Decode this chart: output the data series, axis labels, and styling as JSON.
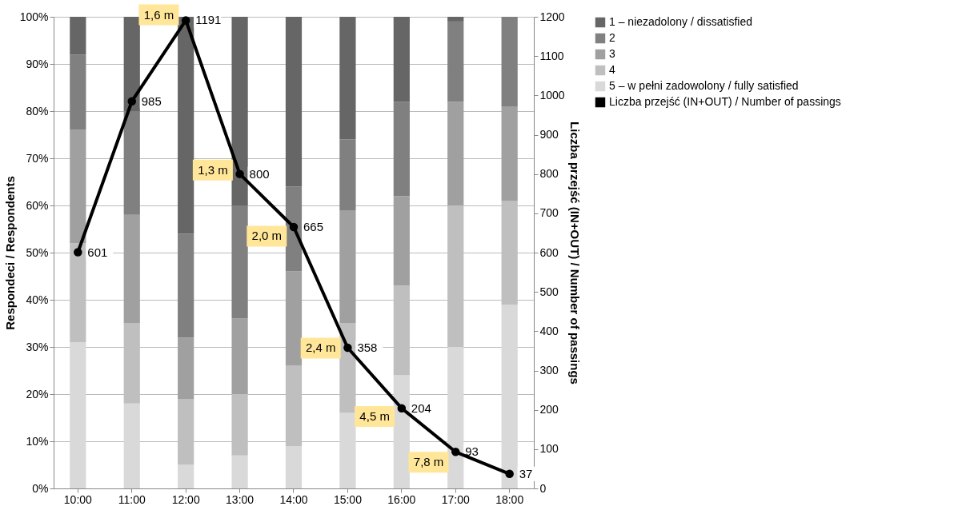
{
  "chart_data": {
    "type": "bar",
    "stacked": true,
    "ylabel": "Respondeci / Respondents",
    "y2label": "Liczba przejść (IN+OUT) / Number of passings",
    "categories": [
      "10:00",
      "11:00",
      "12:00",
      "13:00",
      "14:00",
      "15:00",
      "16:00",
      "17:00",
      "18:00"
    ],
    "ylim": [
      0,
      100
    ],
    "yticks": [
      {
        "value": 0,
        "label": "0%"
      },
      {
        "value": 10,
        "label": "10%"
      },
      {
        "value": 20,
        "label": "20%"
      },
      {
        "value": 30,
        "label": "30%"
      },
      {
        "value": 40,
        "label": "40%"
      },
      {
        "value": 50,
        "label": "50%"
      },
      {
        "value": 60,
        "label": "60%"
      },
      {
        "value": 70,
        "label": "70%"
      },
      {
        "value": 80,
        "label": "80%"
      },
      {
        "value": 90,
        "label": "90%"
      },
      {
        "value": 100,
        "label": "100%"
      }
    ],
    "y2lim": [
      0,
      1200
    ],
    "y2ticks": [
      0,
      100,
      200,
      300,
      400,
      500,
      600,
      700,
      800,
      900,
      1000,
      1100,
      1200
    ],
    "grid": "y",
    "legend": "right",
    "series": [
      {
        "name": "5 – w pełni zadowolony / fully satisfied",
        "color": "#d9d9d9",
        "values": [
          31,
          18,
          5,
          7,
          9,
          16,
          24,
          30,
          39
        ]
      },
      {
        "name": "4",
        "color": "#bfbfbf",
        "values": [
          21,
          17,
          14,
          13,
          17,
          19,
          19,
          30,
          22
        ]
      },
      {
        "name": "3",
        "color": "#a0a0a0",
        "values": [
          24,
          23,
          13,
          16,
          20,
          24,
          19,
          22,
          20
        ]
      },
      {
        "name": "2",
        "color": "#808080",
        "values": [
          16,
          22,
          22,
          24,
          18,
          15,
          20,
          17,
          19
        ]
      },
      {
        "name": "1 – niezadolony / dissatisfied",
        "color": "#666666",
        "values": [
          8,
          20,
          46,
          40,
          36,
          26,
          18,
          1,
          0
        ]
      },
      {
        "name": "Liczba przejść (IN+OUT) / Number of passings",
        "type": "line",
        "axis": "y2",
        "color": "#000000",
        "marker": "circle",
        "values": [
          601,
          985,
          1191,
          800,
          665,
          358,
          204,
          93,
          37
        ],
        "value_labels": [
          "601",
          "985",
          "1191",
          "800",
          "665",
          "358",
          "204",
          "93",
          "37"
        ]
      }
    ],
    "annotations": [
      "1,6 m",
      "1,3 m",
      "2,0 m",
      "2,4 m",
      "4,5 m",
      "7,8 m"
    ]
  }
}
